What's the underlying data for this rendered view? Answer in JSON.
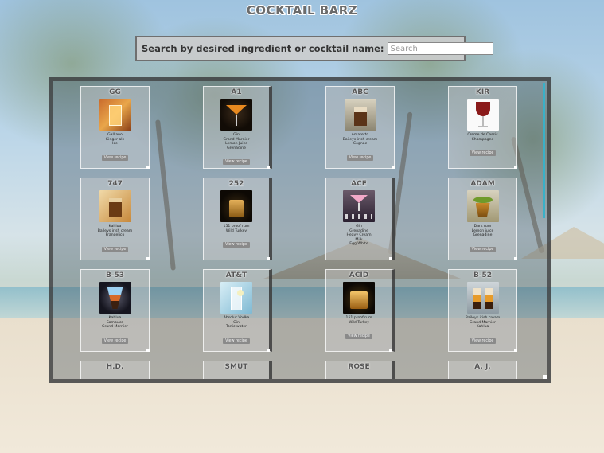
{
  "app": {
    "title": "COCKTAIL BARZ"
  },
  "search": {
    "label": "Search by desired ingredient or cocktail name:",
    "placeholder": "Search",
    "value": ""
  },
  "colors": {
    "accent_scrollbar": "#3bb0c7",
    "card_button": "#8a8a8a"
  },
  "cocktails": [
    {
      "name": "GG",
      "ingredients": [
        "Galliano",
        "Ginger ale",
        "Ice"
      ],
      "button": "View recipe",
      "icon": "orange-highball-icon"
    },
    {
      "name": "A1",
      "ingredients": [
        "Gin",
        "Grand Marnier",
        "Lemon Juice",
        "Grenadine"
      ],
      "button": "View recipe",
      "icon": "orange-martini-icon"
    },
    {
      "name": "ABC",
      "ingredients": [
        "Amaretto",
        "Baileys irish cream",
        "Cognac"
      ],
      "button": "View recipe",
      "icon": "layered-shot-icon"
    },
    {
      "name": "KIR",
      "ingredients": [
        "Creme de Cassis",
        "Champagne"
      ],
      "button": "View recipe",
      "icon": "red-wine-glass-icon"
    },
    {
      "name": "747",
      "ingredients": [
        "Kahlua",
        "Baileys irish cream",
        "Frangelico"
      ],
      "button": "View recipe",
      "icon": "brown-shot-icon"
    },
    {
      "name": "252",
      "ingredients": [
        "151 proof rum",
        "Wild Turkey"
      ],
      "button": "View recipe",
      "icon": "whiskey-shot-icon"
    },
    {
      "name": "ACE",
      "ingredients": [
        "Gin",
        "Grenadine",
        "Heavy Cream",
        "Milk",
        "Egg White"
      ],
      "button": "View recipe",
      "icon": "pink-martini-icon"
    },
    {
      "name": "ADAM",
      "ingredients": [
        "Dark rum",
        "Lemon juice",
        "Grenadine"
      ],
      "button": "View recipe",
      "icon": "lime-cocktail-icon"
    },
    {
      "name": "B-53",
      "ingredients": [
        "Kahlua",
        "Sambuca",
        "Grand Marnier"
      ],
      "button": "View recipe",
      "icon": "blue-layered-shot-icon"
    },
    {
      "name": "AT&T",
      "ingredients": [
        "Absolut Vodka",
        "Gin",
        "Tonic water"
      ],
      "button": "View recipe",
      "icon": "clear-highball-icon"
    },
    {
      "name": "ACID",
      "ingredients": [
        "151 proof rum",
        "Wild Turkey"
      ],
      "button": "View recipe",
      "icon": "whiskey-rocks-icon"
    },
    {
      "name": "B-52",
      "ingredients": [
        "Baileys irish cream",
        "Grand Marnier",
        "Kahlua"
      ],
      "button": "View recipe",
      "icon": "b52-shots-icon"
    },
    {
      "name": "H.D.",
      "ingredients": [],
      "button": "",
      "icon": ""
    },
    {
      "name": "SMUT",
      "ingredients": [],
      "button": "",
      "icon": ""
    },
    {
      "name": "ROSE",
      "ingredients": [],
      "button": "",
      "icon": ""
    },
    {
      "name": "A. J.",
      "ingredients": [],
      "button": "",
      "icon": ""
    }
  ]
}
